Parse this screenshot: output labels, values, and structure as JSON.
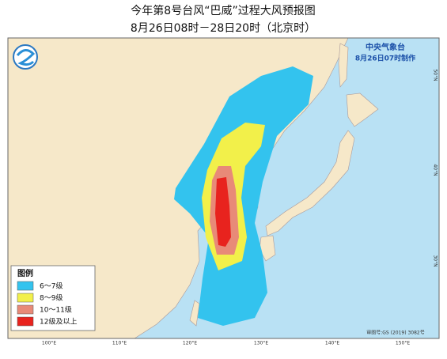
{
  "header": {
    "title": "今年第8号台风“巴威”过程大风预报图",
    "subtitle": "8月26日08时－28日20时（北京时）"
  },
  "issuer": {
    "agency": "中央气象台",
    "issued": "8月26日07时制作"
  },
  "legend": {
    "title": "图例",
    "items": [
      {
        "label": "6～7级",
        "color": "#33c3ee"
      },
      {
        "label": "8～9级",
        "color": "#f2f04a"
      },
      {
        "label": "10～11级",
        "color": "#e88a78"
      },
      {
        "label": "12级及以上",
        "color": "#e8231e"
      }
    ]
  },
  "axes": {
    "longitude": [
      "100°E",
      "110°E",
      "120°E",
      "130°E",
      "140°E",
      "150°E"
    ],
    "latitude": [
      "50°N",
      "40°N",
      "30°N"
    ]
  },
  "footer": {
    "approval": "审图号:GS (2019) 3082号"
  }
}
